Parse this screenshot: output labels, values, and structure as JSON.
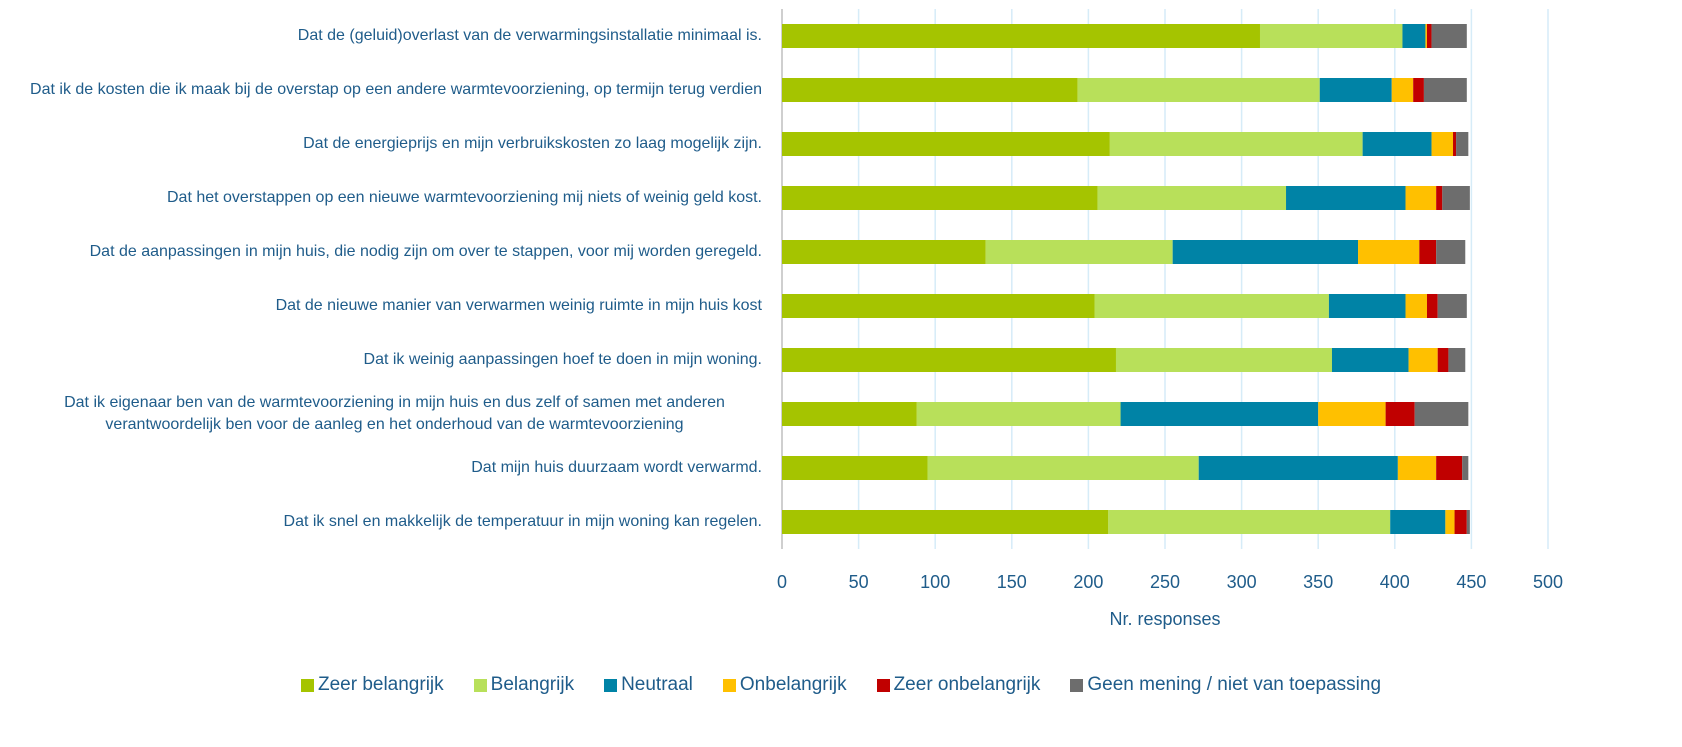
{
  "chart_data": {
    "type": "stacked_bar_horizontal",
    "categories": [
      "Dat de (geluid)overlast van de verwarmingsinstallatie minimaal is.",
      "Dat ik de kosten die ik maak bij de overstap op een andere warmtevoorziening, op termijn terug verdien",
      "Dat de energieprijs en mijn verbruikskosten zo laag mogelijk zijn.",
      "Dat het overstappen op een nieuwe warmtevoorziening mij niets of weinig geld kost.",
      "Dat de aanpassingen in mijn huis, die nodig zijn om over te stappen, voor mij worden geregeld.",
      "Dat de nieuwe manier van verwarmen weinig ruimte in mijn huis kost",
      "Dat ik weinig aanpassingen hoef te doen in mijn woning.",
      "Dat ik eigenaar ben van de warmtevoorziening in mijn huis en dus zelf of samen met anderen verantwoordelijk ben voor de aanleg en het onderhoud van de warmtevoorziening",
      "Dat mijn huis duurzaam wordt verwarmd.",
      "Dat ik snel en makkelijk de temperatuur in mijn woning kan regelen."
    ],
    "series": [
      {
        "name": "Zeer belangrijk",
        "color": "#a5c400",
        "values": [
          312,
          193,
          214,
          206,
          133,
          204,
          218,
          88,
          95,
          213
        ]
      },
      {
        "name": "Belangrijk",
        "color": "#b8e05a",
        "values": [
          93,
          158,
          165,
          123,
          122,
          153,
          141,
          133,
          177,
          184
        ]
      },
      {
        "name": "Neutraal",
        "color": "#0083a6",
        "values": [
          15,
          47,
          45,
          78,
          121,
          50,
          50,
          129,
          130,
          36
        ]
      },
      {
        "name": "Onbelangrijk",
        "color": "#ffc000",
        "values": [
          1,
          14,
          14,
          20,
          40,
          14,
          19,
          44,
          25,
          6
        ]
      },
      {
        "name": "Zeer onbelangrijk",
        "color": "#c00000",
        "values": [
          3,
          7,
          2,
          4,
          11,
          7,
          7,
          19,
          17,
          8
        ]
      },
      {
        "name": "Geen mening / niet van toepassing",
        "color": "#6d6d6d",
        "values": [
          23,
          28,
          8,
          18,
          19,
          19,
          11,
          35,
          4,
          2
        ]
      }
    ],
    "xlabel": "Nr. responses",
    "xlim": [
      0,
      500
    ],
    "xticks": [
      0,
      50,
      100,
      150,
      200,
      250,
      300,
      350,
      400,
      450,
      500
    ],
    "grid": true,
    "legend": "bottom"
  }
}
